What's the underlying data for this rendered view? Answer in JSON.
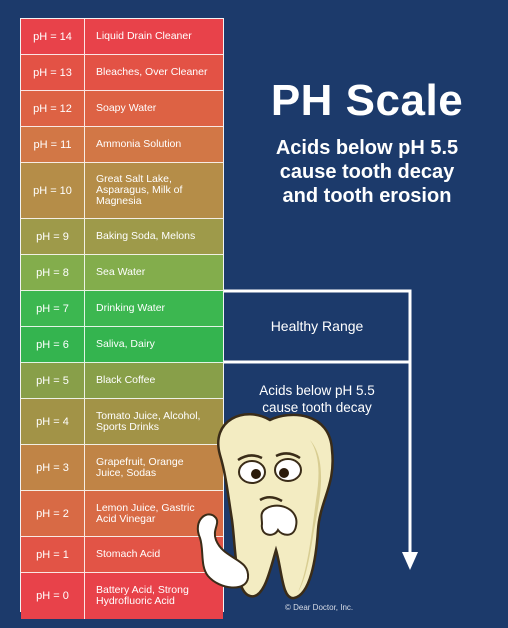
{
  "title": "PH Scale",
  "subtitle": "Acids below pH 5.5\ncause tooth decay\nand tooth erosion",
  "healthy_label": "Healthy Range",
  "decay_label": "Acids below pH 5.5\ncause tooth decay",
  "credit": "© Dear Doctor, Inc.",
  "rows": [
    {
      "ph": "pH = 14",
      "desc": "Liquid Drain Cleaner",
      "color": "#e8424a"
    },
    {
      "ph": "pH = 13",
      "desc": "Bleaches, Over Cleaner",
      "color": "#e35245"
    },
    {
      "ph": "pH = 12",
      "desc": "Soapy Water",
      "color": "#dd6244"
    },
    {
      "ph": "pH = 11",
      "desc": "Ammonia Solution",
      "color": "#d27746"
    },
    {
      "ph": "pH = 10",
      "desc": "Great Salt Lake,\nAsparagus, Milk of\nMagnesia",
      "color": "#b58d48"
    },
    {
      "ph": "pH = 9",
      "desc": "Baking Soda, Melons",
      "color": "#9e9a4a"
    },
    {
      "ph": "pH = 8",
      "desc": "Sea Water",
      "color": "#83ad4c"
    },
    {
      "ph": "pH = 7",
      "desc": "Drinking Water",
      "color": "#3cb750"
    },
    {
      "ph": "pH = 6",
      "desc": "Saliva, Dairy",
      "color": "#34b44f"
    },
    {
      "ph": "pH = 5",
      "desc": "Black Coffee",
      "color": "#889f49"
    },
    {
      "ph": "pH = 4",
      "desc": "Tomato Juice, Alcohol,\nSports Drinks",
      "color": "#a29347"
    },
    {
      "ph": "pH = 3",
      "desc": "Grapefruit, Orange\nJuice, Sodas",
      "color": "#c08446"
    },
    {
      "ph": "pH = 2",
      "desc": "Lemon Juice, Gastric\nAcid Vinegar",
      "color": "#d86a45"
    },
    {
      "ph": "pH = 1",
      "desc": "Stomach Acid",
      "color": "#e25446"
    },
    {
      "ph": "pH = 0",
      "desc": "Battery Acid, Strong\nHydrofluoric Acid",
      "color": "#e8424a"
    }
  ]
}
